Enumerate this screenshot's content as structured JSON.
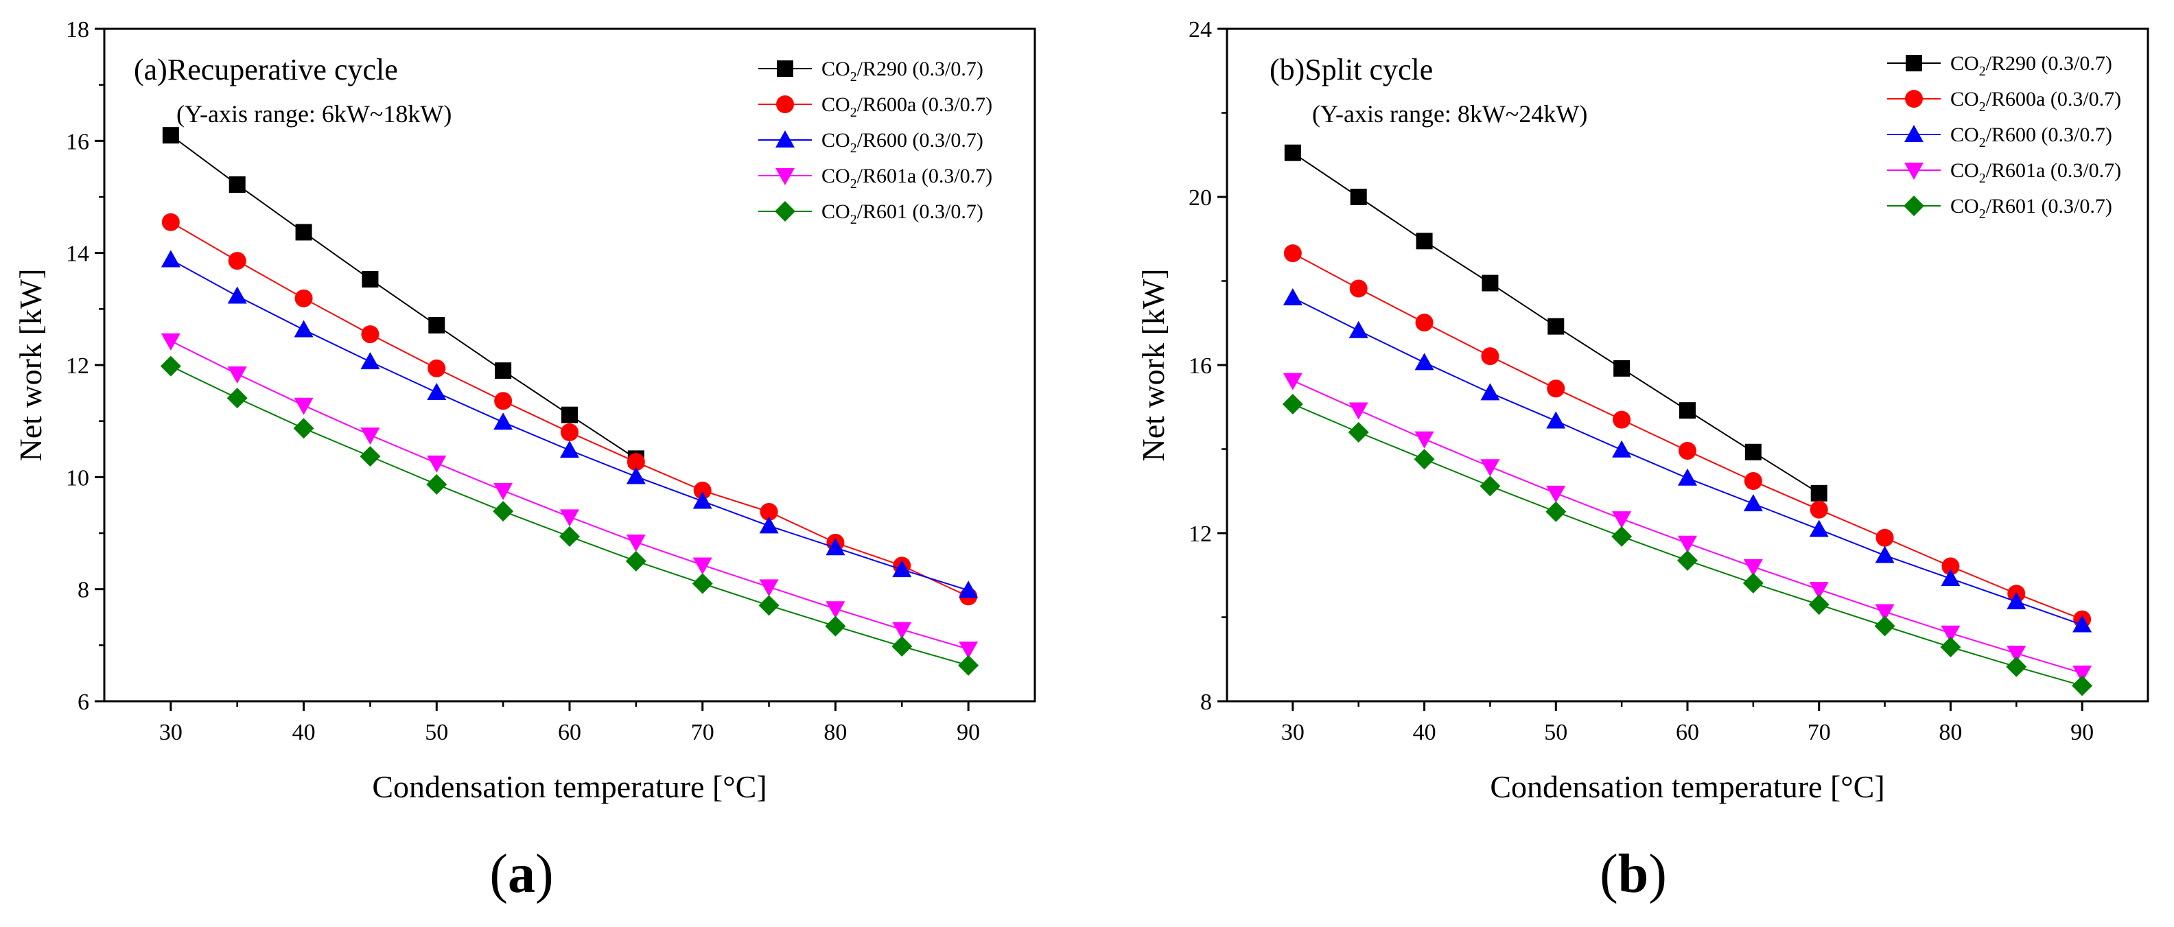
{
  "chart_data": [
    {
      "type": "line",
      "panel_label": "(a)",
      "caption": "a",
      "title": "Recuperative cycle",
      "subtitle": "(Y-axis range: 6kW~18kW)",
      "xlabel": "Condensation temperature [°C]",
      "ylabel": "Net work [kW]",
      "xlim": [
        25,
        95
      ],
      "ylim": [
        6,
        18
      ],
      "xticks": [
        30,
        40,
        50,
        60,
        70,
        80,
        90
      ],
      "yticks": [
        6,
        8,
        10,
        12,
        14,
        16,
        18
      ],
      "x": [
        30,
        35,
        40,
        45,
        50,
        55,
        60,
        65,
        70,
        75,
        80,
        85,
        90
      ],
      "legend_position": "top-right",
      "series": [
        {
          "name_prefix": "CO",
          "name_sub": "2",
          "name_suffix": "/R290 (0.3/0.7)",
          "color": "#000000",
          "marker": "square",
          "x": [
            30,
            35,
            40,
            45,
            50,
            55,
            60,
            65
          ],
          "values": [
            16.1,
            15.22,
            14.37,
            13.53,
            12.71,
            11.9,
            11.11,
            10.33
          ]
        },
        {
          "name_prefix": "CO",
          "name_sub": "2",
          "name_suffix": "/R600a (0.3/0.7)",
          "color": "#ff0000",
          "marker": "circle",
          "x": [
            30,
            35,
            40,
            45,
            50,
            55,
            60,
            65,
            70,
            75,
            80,
            85,
            90
          ],
          "values": [
            14.55,
            13.86,
            13.19,
            12.55,
            11.94,
            11.36,
            10.8,
            10.27,
            9.76,
            9.38,
            8.83,
            8.42,
            7.87
          ]
        },
        {
          "name_prefix": "CO",
          "name_sub": "2",
          "name_suffix": "/R600 (0.3/0.7)",
          "color": "#0000ff",
          "marker": "triangle",
          "x": [
            30,
            35,
            40,
            45,
            50,
            55,
            60,
            65,
            70,
            75,
            80,
            85,
            90
          ],
          "values": [
            13.88,
            13.23,
            12.63,
            12.06,
            11.51,
            10.98,
            10.48,
            10.01,
            9.57,
            9.13,
            8.74,
            8.35,
            7.98
          ]
        },
        {
          "name_prefix": "CO",
          "name_sub": "2",
          "name_suffix": "/R601a (0.3/0.7)",
          "color": "#ff00ff",
          "marker": "triangle-down",
          "x": [
            30,
            35,
            40,
            45,
            50,
            55,
            60,
            65,
            70,
            75,
            80,
            85,
            90
          ],
          "values": [
            12.43,
            11.84,
            11.28,
            10.75,
            10.25,
            9.76,
            9.29,
            8.84,
            8.43,
            8.04,
            7.65,
            7.28,
            6.93
          ]
        },
        {
          "name_prefix": "CO",
          "name_sub": "2",
          "name_suffix": "/R601 (0.3/0.7)",
          "color": "#008000",
          "marker": "diamond",
          "x": [
            30,
            35,
            40,
            45,
            50,
            55,
            60,
            65,
            70,
            75,
            80,
            85,
            90
          ],
          "values": [
            11.98,
            11.41,
            10.87,
            10.37,
            9.87,
            9.39,
            8.94,
            8.5,
            8.1,
            7.71,
            7.34,
            6.98,
            6.64
          ]
        }
      ]
    },
    {
      "type": "line",
      "panel_label": "(b)",
      "caption": "b",
      "title": "Split cycle",
      "subtitle": "(Y-axis range: 8kW~24kW)",
      "xlabel": "Condensation temperature [°C]",
      "ylabel": "Net work [kW]",
      "xlim": [
        25,
        95
      ],
      "ylim": [
        8,
        24
      ],
      "xticks": [
        30,
        40,
        50,
        60,
        70,
        80,
        90
      ],
      "yticks": [
        8,
        12,
        16,
        20,
        24
      ],
      "x": [
        30,
        35,
        40,
        45,
        50,
        55,
        60,
        65,
        70,
        75,
        80,
        85,
        90
      ],
      "legend_position": "top-right",
      "series": [
        {
          "name_prefix": "CO",
          "name_sub": "2",
          "name_suffix": "/R290 (0.3/0.7)",
          "color": "#000000",
          "marker": "square",
          "x": [
            30,
            35,
            40,
            45,
            50,
            55,
            60,
            65,
            70
          ],
          "values": [
            21.05,
            20.0,
            18.95,
            17.95,
            16.92,
            15.92,
            14.92,
            13.93,
            12.95
          ]
        },
        {
          "name_prefix": "CO",
          "name_sub": "2",
          "name_suffix": "/R600a (0.3/0.7)",
          "color": "#ff0000",
          "marker": "circle",
          "x": [
            30,
            35,
            40,
            45,
            50,
            55,
            60,
            65,
            70,
            75,
            80,
            85,
            90
          ],
          "values": [
            18.66,
            17.82,
            17.01,
            16.21,
            15.44,
            14.7,
            13.96,
            13.24,
            12.56,
            11.89,
            11.21,
            10.56,
            9.95
          ]
        },
        {
          "name_prefix": "CO",
          "name_sub": "2",
          "name_suffix": "/R600 (0.3/0.7)",
          "color": "#0000ff",
          "marker": "triangle",
          "x": [
            30,
            35,
            40,
            45,
            50,
            55,
            60,
            65,
            70,
            75,
            80,
            85,
            90
          ],
          "values": [
            17.6,
            16.82,
            16.06,
            15.34,
            14.67,
            13.98,
            13.31,
            12.7,
            12.09,
            11.47,
            10.92,
            10.37,
            9.82
          ]
        },
        {
          "name_prefix": "CO",
          "name_sub": "2",
          "name_suffix": "/R601a (0.3/0.7)",
          "color": "#ff00ff",
          "marker": "triangle-down",
          "x": [
            30,
            35,
            40,
            45,
            50,
            55,
            60,
            65,
            70,
            75,
            80,
            85,
            90
          ],
          "values": [
            15.63,
            14.93,
            14.24,
            13.58,
            12.95,
            12.34,
            11.76,
            11.2,
            10.66,
            10.13,
            9.62,
            9.14,
            8.67
          ]
        },
        {
          "name_prefix": "CO",
          "name_sub": "2",
          "name_suffix": "/R601 (0.3/0.7)",
          "color": "#008000",
          "marker": "diamond",
          "x": [
            30,
            35,
            40,
            45,
            50,
            55,
            60,
            65,
            70,
            75,
            80,
            85,
            90
          ],
          "values": [
            15.07,
            14.4,
            13.76,
            13.12,
            12.51,
            11.92,
            11.35,
            10.81,
            10.3,
            9.79,
            9.29,
            8.82,
            8.37
          ]
        }
      ]
    }
  ]
}
